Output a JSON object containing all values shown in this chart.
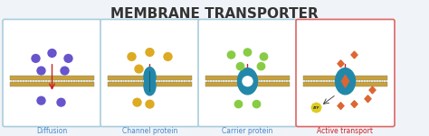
{
  "title": "MEMBRANE TRANSPORTER",
  "title_fontsize": 11,
  "title_color": "#333333",
  "bg_color": "#f0f4f8",
  "panel_bg": "#ffffff",
  "panels": [
    {
      "label": "Diffusion",
      "label_color": "#4488cc",
      "border_color": "#aaccdd"
    },
    {
      "label": "Channel protein",
      "label_color": "#4488cc",
      "border_color": "#aaccdd"
    },
    {
      "label": "Carrier protein",
      "label_color": "#4488cc",
      "border_color": "#aaccdd"
    },
    {
      "label": "Active transport",
      "label_color": "#cc2222",
      "border_color": "#dd6666"
    }
  ],
  "membrane_color": "#c8a040",
  "membrane_line_color": "#888855",
  "particle_colors": [
    "#6655cc",
    "#ddaa22",
    "#88cc44",
    "#dd6633"
  ],
  "protein_color": "#2288aa",
  "arrow_color": "#cc2222",
  "atp_color": "#ddcc22",
  "dark_particle": "#333333"
}
